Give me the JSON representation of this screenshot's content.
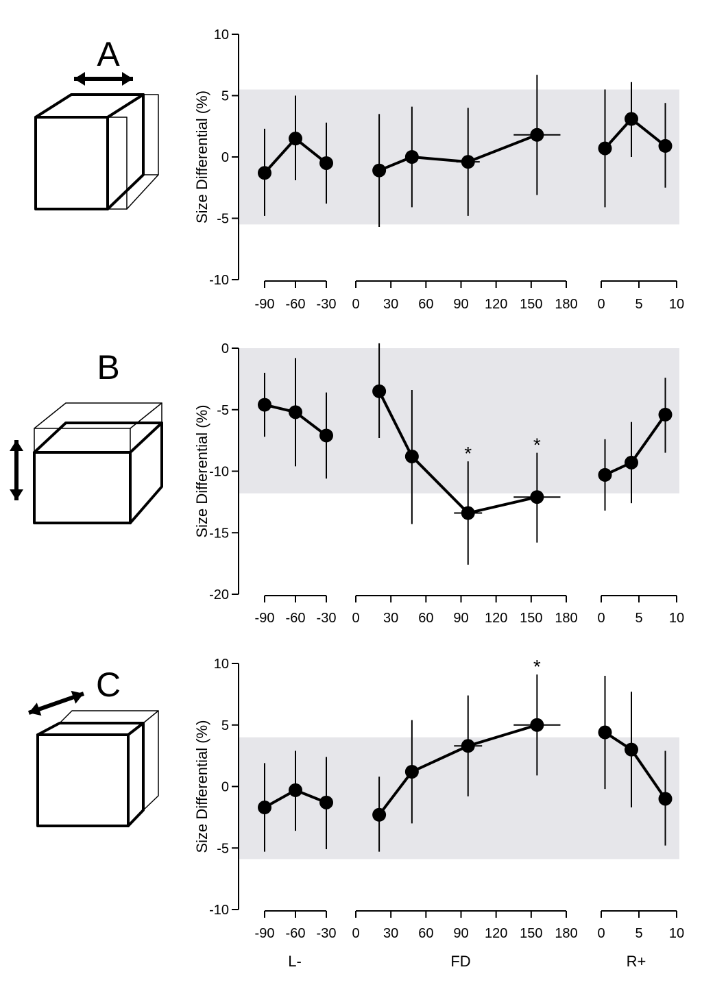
{
  "figure": {
    "group_labels": [
      "L-",
      "FD",
      "R+"
    ]
  },
  "chart_data": [
    {
      "type": "scatter",
      "panel_label": "A",
      "icon": "cube-width-arrow",
      "ylabel": "Size Differential (%)",
      "ylim": [
        -10,
        10
      ],
      "yticks": [
        -10,
        -5,
        0,
        5,
        10
      ],
      "shaded_band": [
        -5.5,
        5.5
      ],
      "groups": [
        {
          "name": "L-",
          "xlim": [
            -90,
            -30
          ],
          "xticks": [
            -90,
            -60,
            -30
          ],
          "points": [
            {
              "x": -90,
              "y": -1.3,
              "err_low": -4.8,
              "err_high": 2.3
            },
            {
              "x": -60,
              "y": 1.5,
              "err_low": -1.9,
              "err_high": 5.0
            },
            {
              "x": -30,
              "y": -0.5,
              "err_low": -3.8,
              "err_high": 2.8
            }
          ]
        },
        {
          "name": "FD",
          "xlim": [
            0,
            180
          ],
          "xticks": [
            0,
            30,
            60,
            90,
            120,
            150,
            180
          ],
          "points": [
            {
              "x": 20,
              "y": -1.1,
              "err_low": -5.7,
              "err_high": 3.5
            },
            {
              "x": 48,
              "y": 0.0,
              "err_low": -4.1,
              "err_high": 4.1
            },
            {
              "x": 96,
              "y": -0.4,
              "err_low": -4.8,
              "err_high": 4.0,
              "xerr": [
                86,
                106
              ]
            },
            {
              "x": 155,
              "y": 1.8,
              "err_low": -3.1,
              "err_high": 6.7,
              "xerr": [
                135,
                175
              ]
            }
          ]
        },
        {
          "name": "R+",
          "xlim": [
            0,
            10
          ],
          "xticks": [
            0,
            5,
            10
          ],
          "points": [
            {
              "x": 0.5,
              "y": 0.7,
              "err_low": -4.1,
              "err_high": 5.5
            },
            {
              "x": 4,
              "y": 3.1,
              "err_low": 0.0,
              "err_high": 6.1
            },
            {
              "x": 8.5,
              "y": 0.9,
              "err_low": -2.5,
              "err_high": 4.4
            }
          ]
        }
      ]
    },
    {
      "type": "scatter",
      "panel_label": "B",
      "icon": "cube-height-arrow",
      "ylabel": "Size Differential (%)",
      "ylim": [
        -20,
        0
      ],
      "yticks": [
        -20,
        -15,
        -10,
        -5,
        0
      ],
      "shaded_band": [
        -11.8,
        0
      ],
      "groups": [
        {
          "name": "L-",
          "xlim": [
            -90,
            -30
          ],
          "xticks": [
            -90,
            -60,
            -30
          ],
          "points": [
            {
              "x": -90,
              "y": -4.6,
              "err_low": -7.2,
              "err_high": -2.0
            },
            {
              "x": -60,
              "y": -5.2,
              "err_low": -9.6,
              "err_high": -0.8
            },
            {
              "x": -30,
              "y": -7.1,
              "err_low": -10.6,
              "err_high": -3.6
            }
          ]
        },
        {
          "name": "FD",
          "xlim": [
            0,
            180
          ],
          "xticks": [
            0,
            30,
            60,
            90,
            120,
            150,
            180
          ],
          "points": [
            {
              "x": 20,
              "y": -3.5,
              "err_low": -7.3,
              "err_high": 0.4
            },
            {
              "x": 48,
              "y": -8.8,
              "err_low": -14.3,
              "err_high": -3.4,
              "xerr": [
                43,
                53
              ]
            },
            {
              "x": 96,
              "y": -13.4,
              "err_low": -17.6,
              "err_high": -9.2,
              "xerr": [
                84,
                108
              ],
              "significant": true
            },
            {
              "x": 155,
              "y": -12.1,
              "err_low": -15.8,
              "err_high": -8.5,
              "xerr": [
                135,
                175
              ],
              "significant": true
            }
          ]
        },
        {
          "name": "R+",
          "xlim": [
            0,
            10
          ],
          "xticks": [
            0,
            5,
            10
          ],
          "points": [
            {
              "x": 0.5,
              "y": -10.3,
              "err_low": -13.2,
              "err_high": -7.4
            },
            {
              "x": 4,
              "y": -9.3,
              "err_low": -12.6,
              "err_high": -6.0
            },
            {
              "x": 8.5,
              "y": -5.4,
              "err_low": -8.5,
              "err_high": -2.4
            }
          ]
        }
      ]
    },
    {
      "type": "scatter",
      "panel_label": "C",
      "icon": "cube-depth-arrow",
      "ylabel": "Size Differential (%)",
      "ylim": [
        -10,
        10
      ],
      "yticks": [
        -10,
        -5,
        0,
        5,
        10
      ],
      "shaded_band": [
        -5.9,
        4.0
      ],
      "groups": [
        {
          "name": "L-",
          "xlim": [
            -90,
            -30
          ],
          "xticks": [
            -90,
            -60,
            -30
          ],
          "points": [
            {
              "x": -90,
              "y": -1.7,
              "err_low": -5.3,
              "err_high": 1.9
            },
            {
              "x": -60,
              "y": -0.3,
              "err_low": -3.6,
              "err_high": 2.9
            },
            {
              "x": -30,
              "y": -1.3,
              "err_low": -5.1,
              "err_high": 2.4
            }
          ]
        },
        {
          "name": "FD",
          "xlim": [
            0,
            180
          ],
          "xticks": [
            0,
            30,
            60,
            90,
            120,
            150,
            180
          ],
          "points": [
            {
              "x": 20,
              "y": -2.3,
              "err_low": -5.3,
              "err_high": 0.8
            },
            {
              "x": 48,
              "y": 1.2,
              "err_low": -3.0,
              "err_high": 5.4,
              "xerr": [
                43,
                53
              ]
            },
            {
              "x": 96,
              "y": 3.3,
              "err_low": -0.8,
              "err_high": 7.4,
              "xerr": [
                84,
                108
              ]
            },
            {
              "x": 155,
              "y": 5.0,
              "err_low": 0.9,
              "err_high": 9.1,
              "xerr": [
                135,
                175
              ],
              "significant": true
            }
          ]
        },
        {
          "name": "R+",
          "xlim": [
            0,
            10
          ],
          "xticks": [
            0,
            5,
            10
          ],
          "points": [
            {
              "x": 0.5,
              "y": 4.4,
              "err_low": -0.2,
              "err_high": 9.0
            },
            {
              "x": 4,
              "y": 3.0,
              "err_low": -1.7,
              "err_high": 7.7
            },
            {
              "x": 8.5,
              "y": -1.0,
              "err_low": -4.8,
              "err_high": 2.9
            }
          ]
        }
      ]
    }
  ],
  "significance_marker": "*",
  "colors": {
    "band": "#e6e6ea",
    "ink": "#000000",
    "background": "#ffffff"
  }
}
